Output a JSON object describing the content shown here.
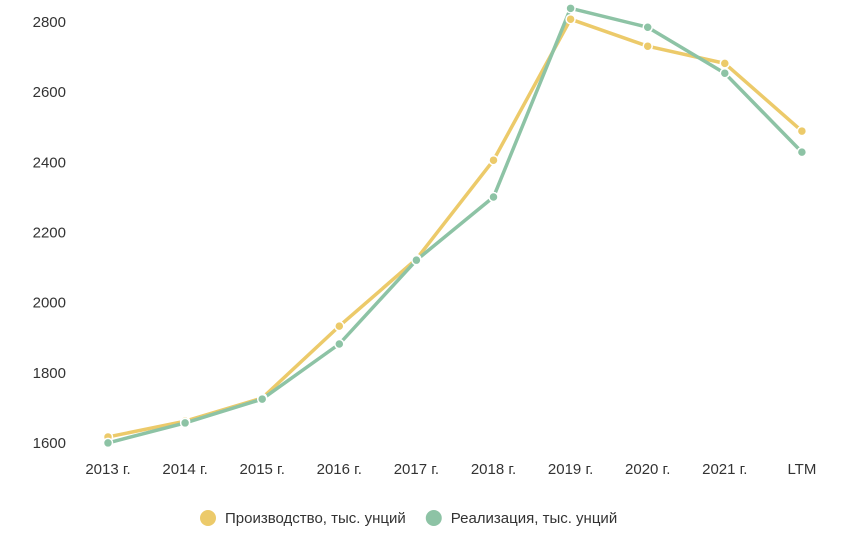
{
  "chart_data": {
    "type": "line",
    "categories": [
      "2013 г.",
      "2014 г.",
      "2015 г.",
      "2016 г.",
      "2017 г.",
      "2018 г.",
      "2019 г.",
      "2020 г.",
      "2021 г.",
      "LTM"
    ],
    "series": [
      {
        "name": "Производство, тыс. унций",
        "color": "#ecca6a",
        "values": [
          1620,
          1665,
          1731,
          1936,
          2127,
          2409,
          2811,
          2734,
          2685,
          2492
        ]
      },
      {
        "name": "Реализация, тыс. унций",
        "color": "#8dc3a5",
        "values": [
          1603,
          1660,
          1728,
          1885,
          2124,
          2304,
          2842,
          2788,
          2657,
          2432
        ]
      }
    ],
    "ylim": [
      1560,
      2860
    ],
    "yticks": [
      1600,
      1800,
      2000,
      2200,
      2400,
      2600,
      2800
    ],
    "grid": false,
    "legend": "bottom"
  }
}
